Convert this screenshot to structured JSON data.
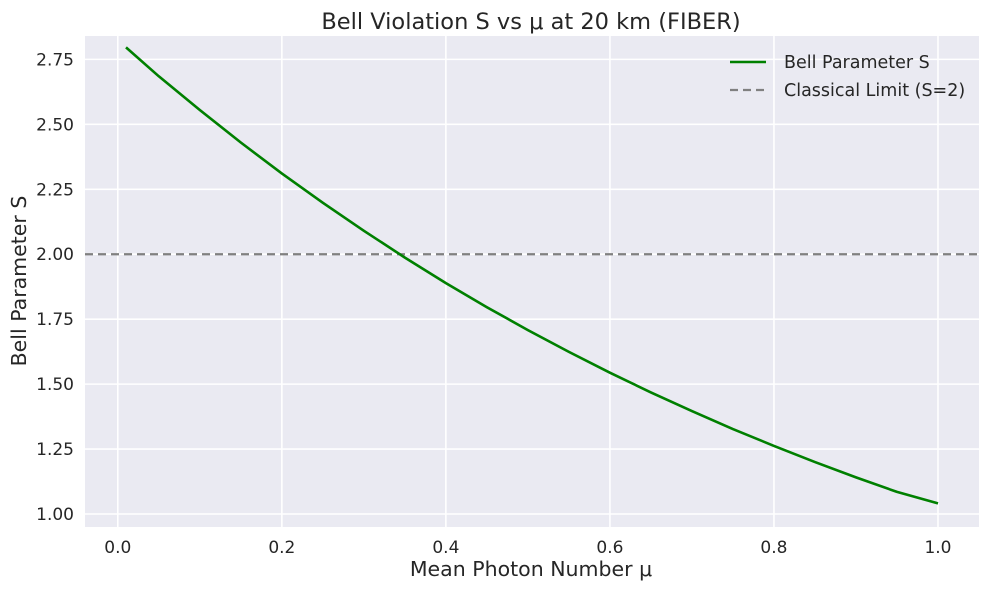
{
  "chart_data": {
    "type": "line",
    "title": "Bell Violation S vs μ at 20 km (FIBER)",
    "xlabel": "Mean Photon Number μ",
    "ylabel": "Bell Parameter S",
    "xlim": [
      -0.04,
      1.05
    ],
    "ylim": [
      0.95,
      2.84
    ],
    "xticks": [
      0.0,
      0.2,
      0.4,
      0.6,
      0.8,
      1.0
    ],
    "xtick_labels": [
      "0.0",
      "0.2",
      "0.4",
      "0.6",
      "0.8",
      "1.0"
    ],
    "yticks": [
      1.0,
      1.25,
      1.5,
      1.75,
      2.0,
      2.25,
      2.5,
      2.75
    ],
    "ytick_labels": [
      "1.00",
      "1.25",
      "1.50",
      "1.75",
      "2.00",
      "2.25",
      "2.50",
      "2.75"
    ],
    "grid": true,
    "legend_position": "top-right",
    "series": [
      {
        "name": "Bell Parameter S",
        "color": "#008000",
        "style": "solid",
        "x": [
          0.01,
          0.05,
          0.1,
          0.15,
          0.2,
          0.25,
          0.3,
          0.35,
          0.4,
          0.45,
          0.5,
          0.55,
          0.6,
          0.65,
          0.7,
          0.75,
          0.8,
          0.85,
          0.9,
          0.95,
          1.0
        ],
        "y": [
          2.796,
          2.685,
          2.555,
          2.43,
          2.311,
          2.198,
          2.09,
          1.987,
          1.889,
          1.796,
          1.708,
          1.624,
          1.544,
          1.468,
          1.396,
          1.327,
          1.262,
          1.2,
          1.141,
          1.085,
          1.041
        ]
      },
      {
        "name": "Classical Limit (S=2)",
        "color": "#808080",
        "style": "dashed",
        "y_constant": 2.0
      }
    ]
  },
  "colors": {
    "plot_background": "#eaeaf2",
    "grid": "#ffffff",
    "text": "#262626"
  }
}
